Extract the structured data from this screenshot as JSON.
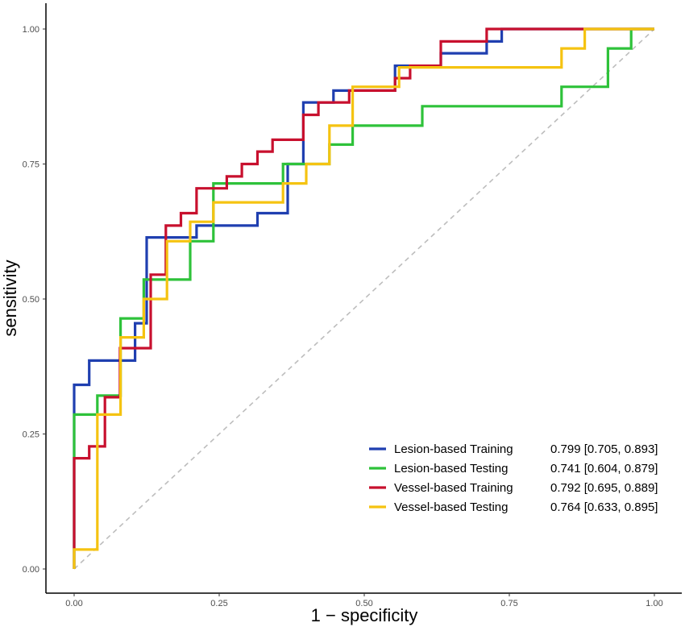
{
  "chart_data": {
    "type": "line",
    "title": "",
    "xlabel": "1 − specificity",
    "ylabel": "sensitivity",
    "xlim": [
      0,
      1
    ],
    "ylim": [
      0,
      1
    ],
    "x_ticks": [
      "0.00",
      "0.25",
      "0.50",
      "0.75",
      "1.00"
    ],
    "y_ticks": [
      "0.00",
      "0.25",
      "0.50",
      "0.75",
      "1.00"
    ],
    "grid": false,
    "legend_position": "bottom-right",
    "reference_line": {
      "x": [
        0,
        1
      ],
      "y": [
        0,
        1
      ],
      "style": "dashed",
      "color": "#bdbdbd"
    },
    "series": [
      {
        "name": "Lesion-based Training",
        "auc": "0.799 [0.705, 0.893]",
        "color": "#1f3fb0",
        "x": [
          0,
          0,
          0.026,
          0.026,
          0.105,
          0.105,
          0.125,
          0.125,
          0.132,
          0.132,
          0.211,
          0.211,
          0.237,
          0.237,
          0.316,
          0.316,
          0.368,
          0.368,
          0.395,
          0.395,
          0.447,
          0.447,
          0.553,
          0.553,
          0.632,
          0.632,
          0.711,
          0.711,
          0.737,
          0.737,
          1
        ],
        "y": [
          0,
          0.341,
          0.341,
          0.386,
          0.386,
          0.455,
          0.455,
          0.614,
          0.614,
          0.614,
          0.614,
          0.636,
          0.636,
          0.636,
          0.636,
          0.659,
          0.659,
          0.75,
          0.75,
          0.864,
          0.864,
          0.886,
          0.886,
          0.932,
          0.932,
          0.955,
          0.955,
          0.977,
          0.977,
          1,
          1
        ]
      },
      {
        "name": "Lesion-based Testing",
        "auc": "0.741 [0.604, 0.879]",
        "color": "#2ec23a",
        "x": [
          0,
          0,
          0.04,
          0.04,
          0.08,
          0.08,
          0.12,
          0.12,
          0.2,
          0.2,
          0.24,
          0.24,
          0.36,
          0.36,
          0.44,
          0.44,
          0.48,
          0.48,
          0.6,
          0.6,
          0.84,
          0.84,
          0.92,
          0.92,
          0.96,
          0.96,
          1
        ],
        "y": [
          0,
          0.286,
          0.286,
          0.321,
          0.321,
          0.464,
          0.464,
          0.536,
          0.536,
          0.607,
          0.607,
          0.714,
          0.714,
          0.75,
          0.75,
          0.786,
          0.786,
          0.821,
          0.821,
          0.857,
          0.857,
          0.893,
          0.893,
          0.964,
          0.964,
          1,
          1
        ]
      },
      {
        "name": "Vessel-based Training",
        "auc": "0.792 [0.695, 0.889]",
        "color": "#c8102e",
        "x": [
          0,
          0,
          0.026,
          0.026,
          0.053,
          0.053,
          0.079,
          0.079,
          0.132,
          0.132,
          0.158,
          0.158,
          0.184,
          0.184,
          0.211,
          0.211,
          0.263,
          0.263,
          0.289,
          0.289,
          0.316,
          0.316,
          0.342,
          0.342,
          0.395,
          0.395,
          0.421,
          0.421,
          0.474,
          0.474,
          0.553,
          0.553,
          0.579,
          0.579,
          0.632,
          0.632,
          0.684,
          0.684,
          0.711,
          0.711,
          0.763,
          0.763,
          1
        ],
        "y": [
          0,
          0.205,
          0.205,
          0.227,
          0.227,
          0.318,
          0.318,
          0.409,
          0.409,
          0.545,
          0.545,
          0.636,
          0.636,
          0.659,
          0.659,
          0.705,
          0.705,
          0.727,
          0.727,
          0.75,
          0.75,
          0.773,
          0.773,
          0.795,
          0.795,
          0.841,
          0.841,
          0.864,
          0.864,
          0.886,
          0.886,
          0.909,
          0.909,
          0.932,
          0.932,
          0.977,
          0.977,
          0.977,
          0.977,
          1,
          1,
          1,
          1
        ]
      },
      {
        "name": "Vessel-based Testing",
        "auc": "0.764 [0.633, 0.895]",
        "color": "#f5c311",
        "x": [
          0,
          0,
          0.04,
          0.04,
          0.08,
          0.08,
          0.12,
          0.12,
          0.16,
          0.16,
          0.2,
          0.2,
          0.24,
          0.24,
          0.36,
          0.36,
          0.4,
          0.4,
          0.44,
          0.44,
          0.48,
          0.48,
          0.56,
          0.56,
          0.8,
          0.8,
          0.84,
          0.84,
          0.88,
          0.88,
          1
        ],
        "y": [
          0,
          0.036,
          0.036,
          0.286,
          0.286,
          0.429,
          0.429,
          0.5,
          0.5,
          0.607,
          0.607,
          0.643,
          0.643,
          0.679,
          0.679,
          0.714,
          0.714,
          0.75,
          0.75,
          0.821,
          0.821,
          0.893,
          0.893,
          0.929,
          0.929,
          0.929,
          0.929,
          0.964,
          0.964,
          1,
          1
        ]
      }
    ]
  }
}
